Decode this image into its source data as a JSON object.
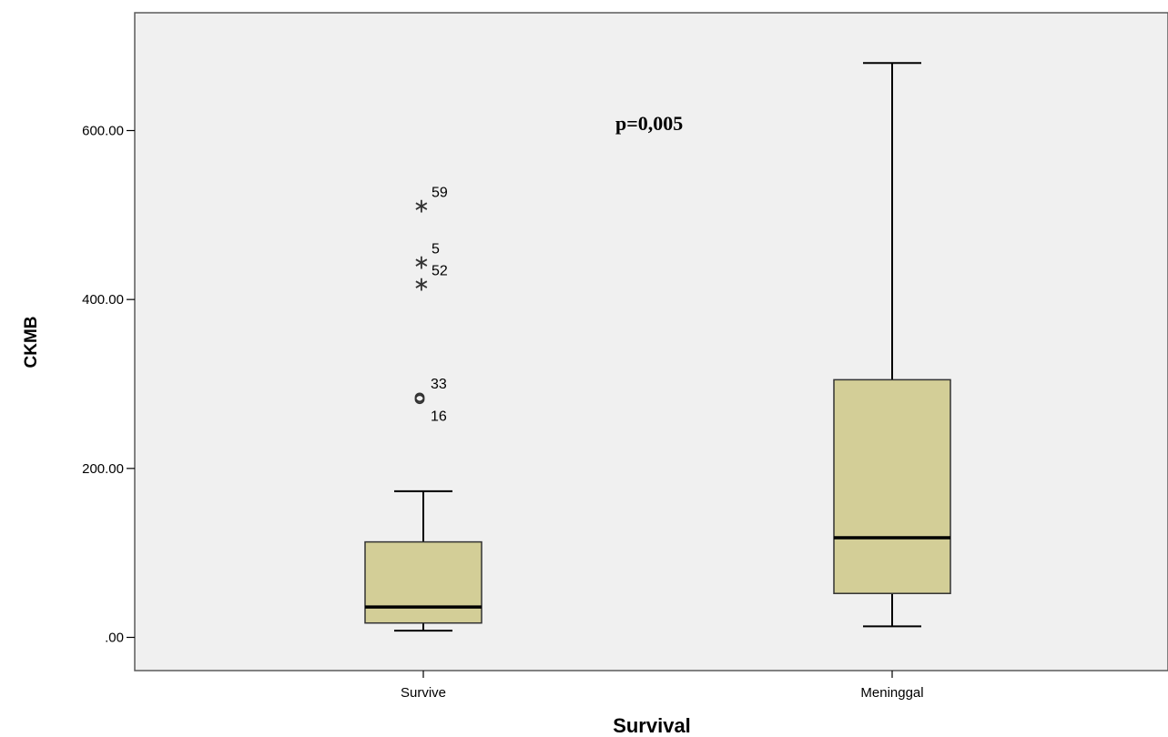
{
  "chart_data": {
    "type": "boxplot",
    "xlabel": "Survival",
    "ylabel": "CKMB",
    "ylim": [
      -40,
      690
    ],
    "yticks": [
      {
        "value": 0,
        "label": ".00"
      },
      {
        "value": 200,
        "label": "200.00"
      },
      {
        "value": 400,
        "label": "400.00"
      },
      {
        "value": 600,
        "label": "600.00"
      }
    ],
    "categories": [
      "Survive",
      "Meninggal"
    ],
    "boxes": [
      {
        "category": "Survive",
        "whisker_low": 8,
        "q1": 17,
        "median": 36,
        "q3": 113,
        "whisker_high": 173,
        "outliers": [
          {
            "id": "59",
            "value": 513,
            "marker": "star"
          },
          {
            "id": "5",
            "value": 446,
            "marker": "star"
          },
          {
            "id": "52",
            "value": 420,
            "marker": "star"
          },
          {
            "id": "33",
            "value": 284,
            "marker": "circle"
          },
          {
            "id": "16",
            "value": 282,
            "marker": "circle"
          }
        ]
      },
      {
        "category": "Meninggal",
        "whisker_low": 13,
        "q1": 52,
        "median": 118,
        "q3": 305,
        "whisker_high": 680,
        "outliers": []
      }
    ],
    "annotations": [
      {
        "text": "p=0,005"
      }
    ],
    "colors": {
      "plot_background": "#f0f0f0",
      "box_fill": "#d3ce97",
      "line": "#000000"
    }
  }
}
